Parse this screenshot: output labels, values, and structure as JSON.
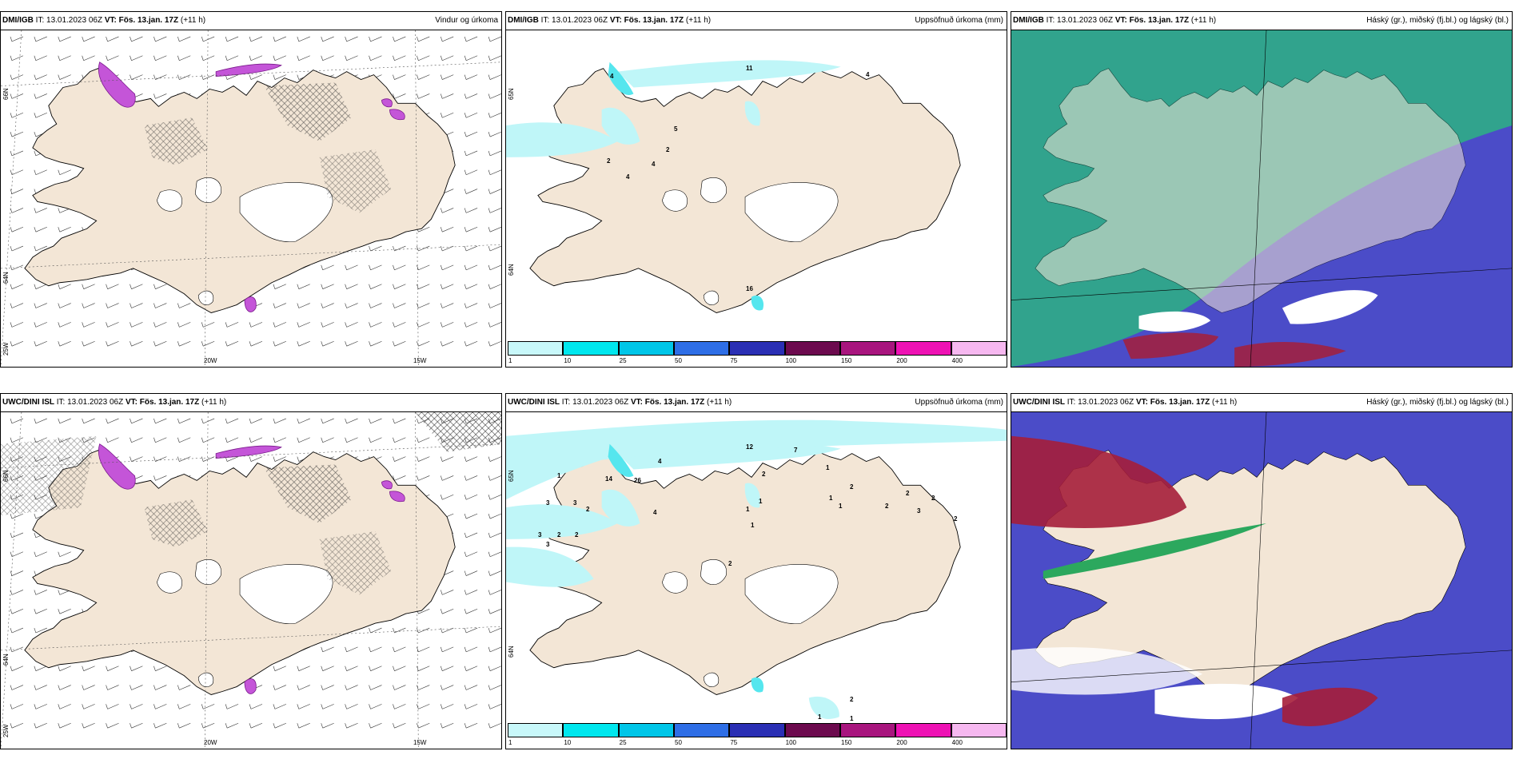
{
  "colors": {
    "land": "#f3e6d6",
    "sea": "#ffffff",
    "precip_light": "#bff6f8",
    "precip_mid": "#55e6ee",
    "magenta": "#c455d8",
    "cloud_dark": "#4b4cc8",
    "cloud_green": "#2fa88a",
    "cloud_red": "#a51e3a"
  },
  "panels": [
    {
      "model": "DMI/IGB",
      "it_text": " IT: 13.01.2023 06Z ",
      "vt_text": "VT: Fös. 13.jan. 17Z",
      "lead": " (+11 h)",
      "right_title": "Vindur og úrkoma",
      "x_labels": [
        "20W",
        "15W"
      ],
      "y_labels": [
        "66N",
        "64N",
        "25W"
      ]
    },
    {
      "model": "DMI/IGB",
      "it_text": " IT: 13.01.2023 06Z ",
      "vt_text": "VT: Fös. 13.jan. 17Z",
      "lead": " (+11 h)",
      "right_title": "Uppsöfnuð úrkoma (mm)",
      "y_labels": [
        "65N",
        "64N"
      ],
      "numbers": [
        "11",
        "4",
        "5",
        "4",
        "2",
        "2",
        "4",
        "16",
        "4"
      ]
    },
    {
      "model": "DMI/IGB",
      "it_text": " IT: 13.01.2023 06Z ",
      "vt_text": "VT: Fös. 13.jan. 17Z",
      "lead": " (+11 h)",
      "right_title": "Háský (gr.), miðský (fj.bl.) og lágský (bl.)"
    },
    {
      "model": "UWC/DINI ISL",
      "it_text": " IT: 13.01.2023 06Z ",
      "vt_text": "VT: Fös. 13.jan. 17Z",
      "lead": " (+11 h)",
      "right_title": "",
      "x_labels": [
        "20W",
        "15W"
      ],
      "y_labels": [
        "66N",
        "64N",
        "25W"
      ]
    },
    {
      "model": "UWC/DINI ISL",
      "it_text": " IT: 13.01.2023 06Z ",
      "vt_text": "VT: Fös. 13.jan. 17Z",
      "lead": " (+11 h)",
      "right_title": "Uppsöfnuð úrkoma (mm)",
      "y_labels": [
        "65N",
        "64N"
      ],
      "numbers": [
        "12",
        "7",
        "4",
        "1",
        "14",
        "26",
        "4",
        "3",
        "2",
        "2",
        "3",
        "3",
        "3",
        "2",
        "1",
        "1",
        "2",
        "1",
        "1",
        "1",
        "2",
        "3",
        "2",
        "2",
        "2",
        "1",
        "2",
        "2",
        "2",
        "1",
        "1"
      ]
    },
    {
      "model": "UWC/DINI ISL",
      "it_text": " IT: 13.01.2023 06Z ",
      "vt_text": "VT: Fös. 13.jan. 17Z",
      "lead": " (+11 h)",
      "right_title": "Háský (gr.), miðský (fj.bl.) og lágský (bl.)"
    }
  ],
  "colorbar": {
    "ticks": [
      "1",
      "10",
      "25",
      "50",
      "75",
      "100",
      "150",
      "200",
      "400"
    ],
    "colors": [
      "#c8f8fa",
      "#00e7ee",
      "#00c6e8",
      "#2e6ee6",
      "#2a2fb4",
      "#6c0a4e",
      "#a8157e",
      "#ee12b4",
      "#f6b8f0"
    ]
  }
}
